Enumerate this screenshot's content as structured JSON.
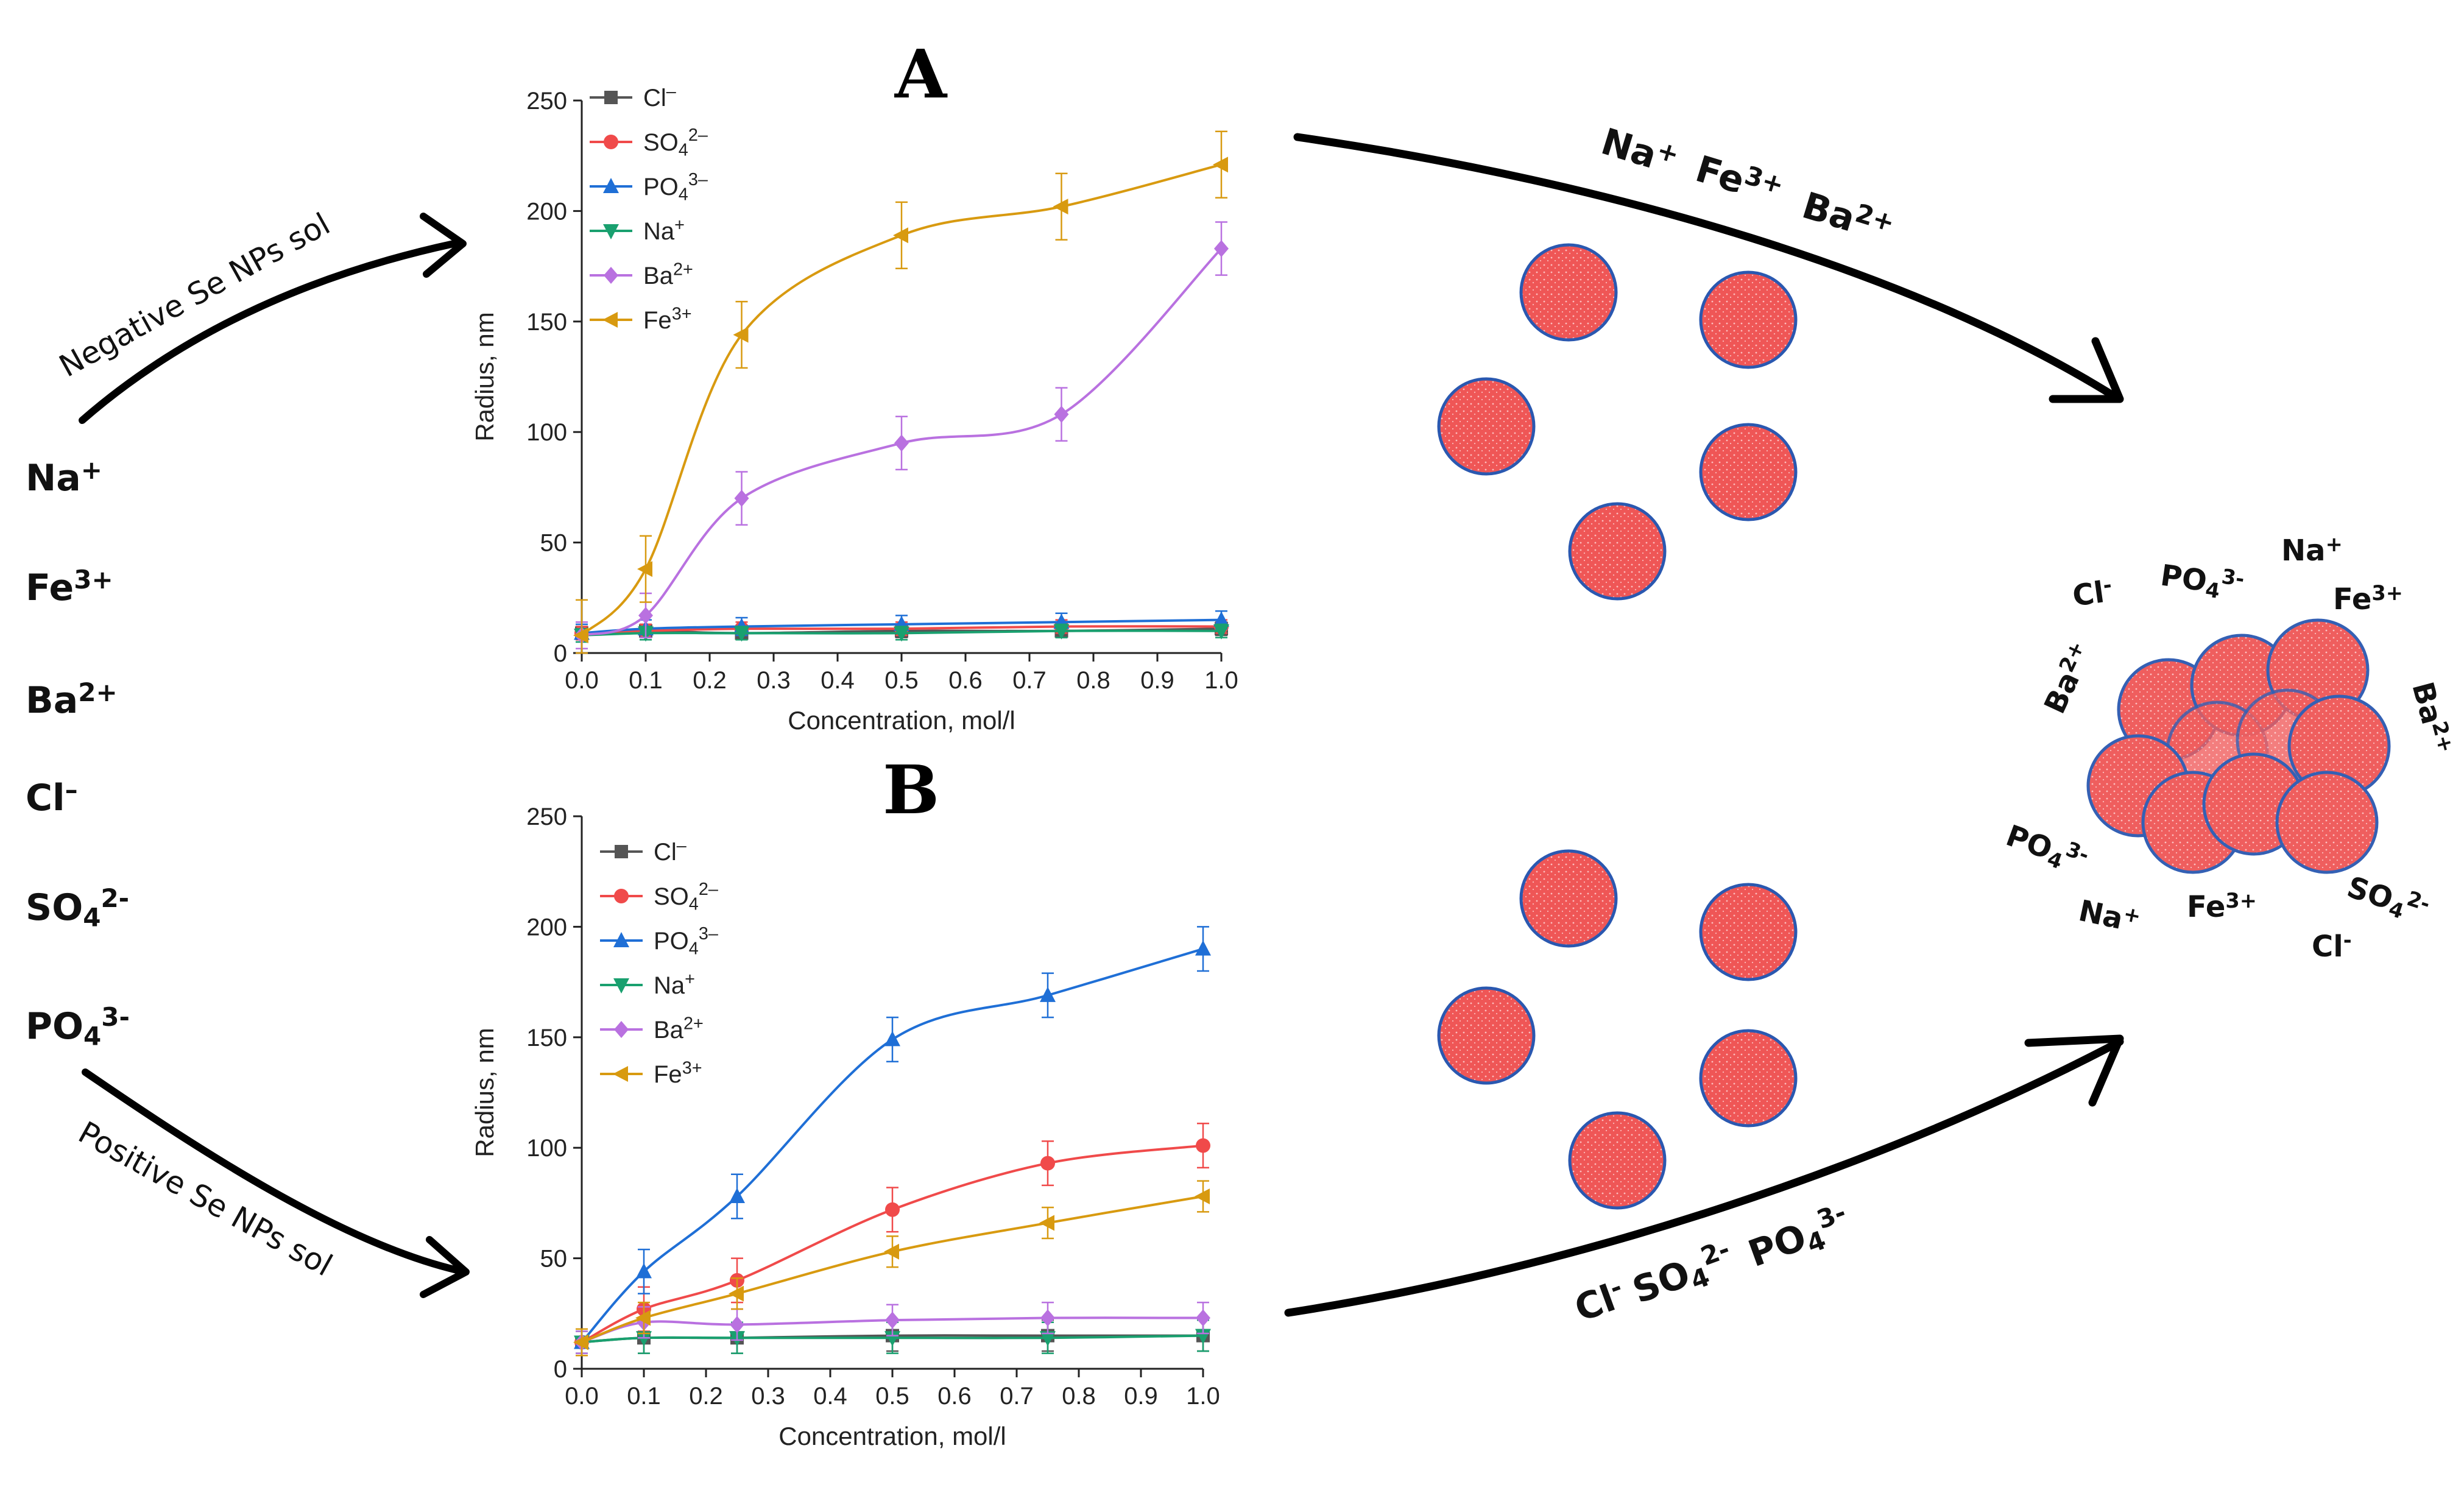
{
  "colors": {
    "Cl": "#555555",
    "SO4": "#f04a4a",
    "PO4": "#1f6fd6",
    "Na": "#19a06f",
    "Ba": "#b971e0",
    "Fe": "#d89a10",
    "particle": "#ef5656",
    "particle_edge": "#2a58b0"
  },
  "left_ions": [
    {
      "base": "Na",
      "sup": "+"
    },
    {
      "base": "Fe",
      "sup": "3+"
    },
    {
      "base": "Ba",
      "sup": "2+"
    },
    {
      "base": "Cl",
      "sup": "–"
    },
    {
      "base": "SO",
      "sub": "4",
      "sup": "2-"
    },
    {
      "base": "PO",
      "sub": "4",
      "sup": "3-"
    }
  ],
  "arrows": {
    "negative_label": "Negative Se NPs sol",
    "positive_label": "Positive Se NPs sol",
    "top_ions": [
      {
        "base": "Na",
        "sup": "+"
      },
      {
        "base": "Fe",
        "sup": "3+"
      },
      {
        "base": "Ba",
        "sup": "2+"
      }
    ],
    "bottom_ions": [
      {
        "base": "Cl",
        "sup": "-"
      },
      {
        "base": "SO",
        "sub": "4",
        "sup": "2-"
      },
      {
        "base": "PO",
        "sub": "4",
        "sup": "3-"
      }
    ]
  },
  "cluster_ions": [
    {
      "base": "Cl",
      "sup": "-"
    },
    {
      "base": "PO",
      "sub": "4",
      "sup": "3-"
    },
    {
      "base": "Na",
      "sup": "+"
    },
    {
      "base": "Fe",
      "sup": "3+"
    },
    {
      "base": "Ba",
      "sup": "2+"
    },
    {
      "base": "Ba",
      "sup": "2+"
    },
    {
      "base": "PO",
      "sub": "4",
      "sup": "3-"
    },
    {
      "base": "Na",
      "sup": "+"
    },
    {
      "base": "Fe",
      "sup": "3+"
    },
    {
      "base": "SO",
      "sub": "4",
      "sup": "2-"
    },
    {
      "base": "Cl",
      "sup": "-"
    }
  ],
  "chart_data": [
    {
      "panel": "A",
      "type": "line",
      "title": "A",
      "xlabel": "Concentration, mol/l",
      "ylabel": "Radius, nm",
      "xlim": [
        0,
        1
      ],
      "ylim": [
        0,
        250
      ],
      "xticks": [
        "0.0",
        "0.1",
        "0.2",
        "0.3",
        "0.4",
        "0.5",
        "0.6",
        "0.7",
        "0.8",
        "0.9",
        "1.0"
      ],
      "yticks": [
        "0",
        "50",
        "100",
        "150",
        "200",
        "250"
      ],
      "x": [
        0,
        0.1,
        0.25,
        0.5,
        0.75,
        1.0
      ],
      "legend_position": "top-left",
      "series": [
        {
          "key": "Cl",
          "name": "Cl",
          "sub": "",
          "sup": "–",
          "marker": "square",
          "values": [
            9,
            10,
            9,
            10,
            10,
            11
          ],
          "errors": [
            3,
            3,
            3,
            3,
            3,
            3
          ]
        },
        {
          "key": "SO4",
          "name": "SO",
          "sub": "4",
          "sup": "2–",
          "marker": "circle",
          "values": [
            9,
            10,
            11,
            11,
            12,
            12
          ],
          "errors": [
            3,
            3,
            3,
            3,
            3,
            3
          ]
        },
        {
          "key": "PO4",
          "name": "PO",
          "sub": "4",
          "sup": "3–",
          "marker": "triangle-up",
          "values": [
            9,
            11,
            12,
            13,
            14,
            15
          ],
          "errors": [
            4,
            4,
            4,
            4,
            4,
            4
          ]
        },
        {
          "key": "Na",
          "name": "Na",
          "sub": "",
          "sup": "+",
          "marker": "triangle-down",
          "values": [
            8,
            9,
            9,
            9,
            10,
            10
          ],
          "errors": [
            3,
            3,
            3,
            3,
            3,
            3
          ]
        },
        {
          "key": "Ba",
          "name": "Ba",
          "sub": "",
          "sup": "2+",
          "marker": "diamond",
          "values": [
            8,
            17,
            70,
            95,
            108,
            183
          ],
          "errors": [
            6,
            10,
            12,
            12,
            12,
            12
          ]
        },
        {
          "key": "Fe",
          "name": "Fe",
          "sub": "",
          "sup": "3+",
          "marker": "triangle-left",
          "values": [
            8,
            38,
            144,
            189,
            202,
            221
          ],
          "errors": [
            16,
            15,
            15,
            15,
            15,
            15
          ]
        }
      ]
    },
    {
      "panel": "B",
      "type": "line",
      "title": "B",
      "xlabel": "Concentration, mol/l",
      "ylabel": "Radius, nm",
      "xlim": [
        0,
        1
      ],
      "ylim": [
        0,
        250
      ],
      "xticks": [
        "0.0",
        "0.1",
        "0.2",
        "0.3",
        "0.4",
        "0.5",
        "0.6",
        "0.7",
        "0.8",
        "0.9",
        "1.0"
      ],
      "yticks": [
        "0",
        "50",
        "100",
        "150",
        "200",
        "250"
      ],
      "x": [
        0,
        0.1,
        0.25,
        0.5,
        0.75,
        1.0
      ],
      "legend_position": "top-left",
      "series": [
        {
          "key": "Cl",
          "name": "Cl",
          "sub": "",
          "sup": "–",
          "marker": "square",
          "values": [
            12,
            14,
            14,
            15,
            15,
            15
          ],
          "errors": [
            5,
            7,
            7,
            7,
            7,
            7
          ]
        },
        {
          "key": "SO4",
          "name": "SO",
          "sub": "4",
          "sup": "2–",
          "marker": "circle",
          "values": [
            12,
            27,
            40,
            72,
            93,
            101
          ],
          "errors": [
            6,
            10,
            10,
            10,
            10,
            10
          ]
        },
        {
          "key": "PO4",
          "name": "PO",
          "sub": "4",
          "sup": "3–",
          "marker": "triangle-up",
          "values": [
            12,
            44,
            78,
            149,
            169,
            190
          ],
          "errors": [
            6,
            10,
            10,
            10,
            10,
            10
          ]
        },
        {
          "key": "Na",
          "name": "Na",
          "sub": "",
          "sup": "+",
          "marker": "triangle-down",
          "values": [
            12,
            14,
            14,
            14,
            14,
            15
          ],
          "errors": [
            5,
            7,
            7,
            7,
            7,
            7
          ]
        },
        {
          "key": "Ba",
          "name": "Ba",
          "sub": "",
          "sup": "2+",
          "marker": "diamond",
          "values": [
            12,
            21,
            20,
            22,
            23,
            23
          ],
          "errors": [
            5,
            7,
            7,
            7,
            7,
            7
          ]
        },
        {
          "key": "Fe",
          "name": "Fe",
          "sub": "",
          "sup": "3+",
          "marker": "triangle-left",
          "values": [
            12,
            23,
            34,
            53,
            66,
            78
          ],
          "errors": [
            6,
            7,
            7,
            7,
            7,
            7
          ]
        }
      ]
    }
  ]
}
